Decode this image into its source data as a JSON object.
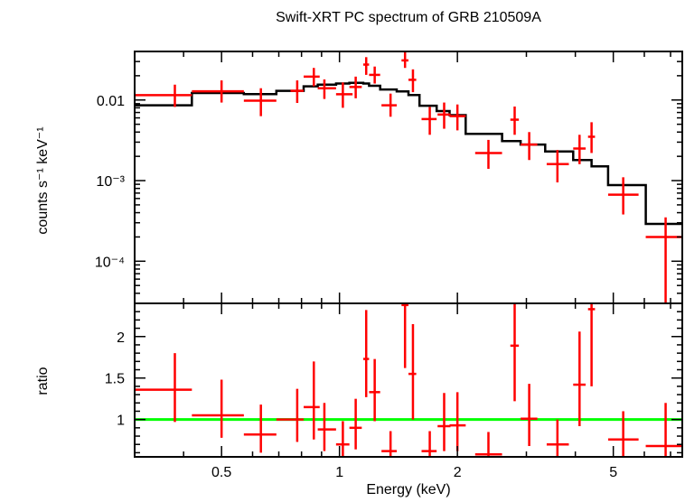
{
  "chart_data": [
    {
      "panel": "spectrum",
      "type": "scatter",
      "title": "Swift-XRT PC spectrum of GRB 210509A",
      "xlabel": "",
      "ylabel": "counts s⁻¹ keV⁻¹",
      "xscale": "log",
      "yscale": "log",
      "xlim": [
        0.3,
        7.5
      ],
      "ylim": [
        3e-05,
        0.04
      ],
      "y_tick_labels": [
        "0.01",
        "10⁻³",
        "10⁻⁴"
      ],
      "y_ticks": [
        0.01,
        0.001,
        0.0001
      ],
      "grid": false,
      "colors": {
        "data": "#ff0000",
        "model": "#000000"
      },
      "data_points": [
        {
          "x": 0.38,
          "xlo": 0.3,
          "xhi": 0.42,
          "y": 0.0115,
          "ylo": 0.0082,
          "yhi": 0.0155
        },
        {
          "x": 0.5,
          "xlo": 0.42,
          "xhi": 0.57,
          "y": 0.0128,
          "ylo": 0.0093,
          "yhi": 0.0175
        },
        {
          "x": 0.63,
          "xlo": 0.57,
          "xhi": 0.69,
          "y": 0.0098,
          "ylo": 0.0063,
          "yhi": 0.014
        },
        {
          "x": 0.78,
          "xlo": 0.75,
          "xhi": 0.81,
          "y": 0.013,
          "ylo": 0.0092,
          "yhi": 0.0175
        },
        {
          "x": 0.86,
          "xlo": 0.81,
          "xhi": 0.89,
          "y": 0.0195,
          "ylo": 0.0148,
          "yhi": 0.025
        },
        {
          "x": 0.915,
          "xlo": 0.88,
          "xhi": 0.98,
          "y": 0.014,
          "ylo": 0.0103,
          "yhi": 0.018
        },
        {
          "x": 1.02,
          "xlo": 0.98,
          "xhi": 1.08,
          "y": 0.0118,
          "ylo": 0.008,
          "yhi": 0.0165
        },
        {
          "x": 1.1,
          "xlo": 1.06,
          "xhi": 1.14,
          "y": 0.0145,
          "ylo": 0.0105,
          "yhi": 0.0195
        },
        {
          "x": 1.17,
          "xlo": 1.15,
          "xhi": 1.19,
          "y": 0.0275,
          "ylo": 0.0205,
          "yhi": 0.034
        },
        {
          "x": 1.23,
          "xlo": 1.19,
          "xhi": 1.27,
          "y": 0.0205,
          "ylo": 0.016,
          "yhi": 0.026
        },
        {
          "x": 1.35,
          "xlo": 1.28,
          "xhi": 1.4,
          "y": 0.0086,
          "ylo": 0.0062,
          "yhi": 0.012
        },
        {
          "x": 1.47,
          "xlo": 1.44,
          "xhi": 1.5,
          "y": 0.031,
          "ylo": 0.025,
          "yhi": 0.039
        },
        {
          "x": 1.54,
          "xlo": 1.5,
          "xhi": 1.57,
          "y": 0.0178,
          "ylo": 0.0125,
          "yhi": 0.024
        },
        {
          "x": 1.7,
          "xlo": 1.62,
          "xhi": 1.77,
          "y": 0.0058,
          "ylo": 0.0037,
          "yhi": 0.0082
        },
        {
          "x": 1.85,
          "xlo": 1.78,
          "xhi": 1.92,
          "y": 0.0066,
          "ylo": 0.0044,
          "yhi": 0.0093
        },
        {
          "x": 2.0,
          "xlo": 1.91,
          "xhi": 2.1,
          "y": 0.0063,
          "ylo": 0.0042,
          "yhi": 0.0088
        },
        {
          "x": 2.4,
          "xlo": 2.22,
          "xhi": 2.6,
          "y": 0.0022,
          "ylo": 0.0014,
          "yhi": 0.0032
        },
        {
          "x": 2.8,
          "xlo": 2.73,
          "xhi": 2.87,
          "y": 0.0057,
          "ylo": 0.0037,
          "yhi": 0.0083
        },
        {
          "x": 3.05,
          "xlo": 2.9,
          "xhi": 3.2,
          "y": 0.0028,
          "ylo": 0.0018,
          "yhi": 0.004
        },
        {
          "x": 3.6,
          "xlo": 3.38,
          "xhi": 3.85,
          "y": 0.0016,
          "ylo": 0.00095,
          "yhi": 0.0024
        },
        {
          "x": 4.1,
          "xlo": 3.95,
          "xhi": 4.25,
          "y": 0.0025,
          "ylo": 0.0016,
          "yhi": 0.0037
        },
        {
          "x": 4.4,
          "xlo": 4.31,
          "xhi": 4.49,
          "y": 0.0035,
          "ylo": 0.0022,
          "yhi": 0.0053
        },
        {
          "x": 5.3,
          "xlo": 4.85,
          "xhi": 5.8,
          "y": 0.00067,
          "ylo": 0.00038,
          "yhi": 0.0011
        },
        {
          "x": 6.8,
          "xlo": 6.05,
          "xhi": 7.5,
          "y": 0.0002,
          "ylo": 3e-05,
          "yhi": 0.00035
        }
      ],
      "model_steps": [
        {
          "x0": 0.3,
          "x1": 0.42,
          "y": 0.0086
        },
        {
          "x0": 0.42,
          "x1": 0.57,
          "y": 0.0122
        },
        {
          "x0": 0.57,
          "x1": 0.69,
          "y": 0.0118
        },
        {
          "x0": 0.69,
          "x1": 0.81,
          "y": 0.013
        },
        {
          "x0": 0.81,
          "x1": 0.88,
          "y": 0.0148
        },
        {
          "x0": 0.88,
          "x1": 0.98,
          "y": 0.0155
        },
        {
          "x0": 0.98,
          "x1": 1.06,
          "y": 0.016
        },
        {
          "x0": 1.06,
          "x1": 1.15,
          "y": 0.0163
        },
        {
          "x0": 1.15,
          "x1": 1.19,
          "y": 0.016
        },
        {
          "x0": 1.19,
          "x1": 1.27,
          "y": 0.015
        },
        {
          "x0": 1.27,
          "x1": 1.4,
          "y": 0.0135
        },
        {
          "x0": 1.4,
          "x1": 1.5,
          "y": 0.0128
        },
        {
          "x0": 1.5,
          "x1": 1.6,
          "y": 0.0115
        },
        {
          "x0": 1.6,
          "x1": 1.77,
          "y": 0.0085
        },
        {
          "x0": 1.77,
          "x1": 1.91,
          "y": 0.0073
        },
        {
          "x0": 1.91,
          "x1": 2.1,
          "y": 0.0065
        },
        {
          "x0": 2.1,
          "x1": 2.6,
          "y": 0.0038
        },
        {
          "x0": 2.6,
          "x1": 2.9,
          "y": 0.0031
        },
        {
          "x0": 2.9,
          "x1": 3.35,
          "y": 0.0028
        },
        {
          "x0": 3.35,
          "x1": 3.95,
          "y": 0.0023
        },
        {
          "x0": 3.95,
          "x1": 4.4,
          "y": 0.0018
        },
        {
          "x0": 4.4,
          "x1": 4.85,
          "y": 0.0015
        },
        {
          "x0": 4.85,
          "x1": 6.05,
          "y": 0.00088
        },
        {
          "x0": 6.05,
          "x1": 7.5,
          "y": 0.00029
        }
      ]
    },
    {
      "panel": "ratio",
      "type": "scatter",
      "xlabel": "Energy (keV)",
      "ylabel": "ratio",
      "xscale": "log",
      "yscale": "linear",
      "xlim": [
        0.3,
        7.5
      ],
      "ylim": [
        0.55,
        2.4
      ],
      "x_ticks": [
        0.5,
        1,
        2,
        5
      ],
      "x_tick_labels": [
        "0.5",
        "1",
        "2",
        "5"
      ],
      "y_ticks": [
        1,
        1.5,
        2
      ],
      "y_tick_labels": [
        "1",
        "1.5",
        "2"
      ],
      "reference_line": 1.0,
      "colors": {
        "data": "#ff0000",
        "reference": "#00ff00"
      },
      "data_points": [
        {
          "x": 0.38,
          "xlo": 0.3,
          "xhi": 0.42,
          "y": 1.36,
          "ylo": 0.97,
          "yhi": 1.8
        },
        {
          "x": 0.5,
          "xlo": 0.42,
          "xhi": 0.57,
          "y": 1.05,
          "ylo": 0.78,
          "yhi": 1.48
        },
        {
          "x": 0.63,
          "xlo": 0.57,
          "xhi": 0.69,
          "y": 0.82,
          "ylo": 0.6,
          "yhi": 1.18
        },
        {
          "x": 0.78,
          "xlo": 0.69,
          "xhi": 0.81,
          "y": 1.0,
          "ylo": 0.73,
          "yhi": 1.37
        },
        {
          "x": 0.86,
          "xlo": 0.81,
          "xhi": 0.89,
          "y": 1.15,
          "ylo": 0.76,
          "yhi": 1.7
        },
        {
          "x": 0.915,
          "xlo": 0.88,
          "xhi": 0.98,
          "y": 0.88,
          "ylo": 0.62,
          "yhi": 1.2
        },
        {
          "x": 1.02,
          "xlo": 0.98,
          "xhi": 1.06,
          "y": 0.7,
          "ylo": 0.5,
          "yhi": 0.98
        },
        {
          "x": 1.1,
          "xlo": 1.06,
          "xhi": 1.14,
          "y": 0.9,
          "ylo": 0.64,
          "yhi": 1.25
        },
        {
          "x": 1.17,
          "xlo": 1.15,
          "xhi": 1.19,
          "y": 1.73,
          "ylo": 1.27,
          "yhi": 2.32
        },
        {
          "x": 1.23,
          "xlo": 1.19,
          "xhi": 1.27,
          "y": 1.33,
          "ylo": 0.98,
          "yhi": 1.73
        },
        {
          "x": 1.35,
          "xlo": 1.28,
          "xhi": 1.4,
          "y": 0.62,
          "ylo": 0.45,
          "yhi": 0.86
        },
        {
          "x": 1.47,
          "xlo": 1.44,
          "xhi": 1.5,
          "y": 2.38,
          "ylo": 1.62,
          "yhi": 2.4
        },
        {
          "x": 1.54,
          "xlo": 1.5,
          "xhi": 1.57,
          "y": 1.55,
          "ylo": 1.0,
          "yhi": 2.15
        },
        {
          "x": 1.7,
          "xlo": 1.62,
          "xhi": 1.77,
          "y": 0.62,
          "ylo": 0.45,
          "yhi": 0.86
        },
        {
          "x": 1.85,
          "xlo": 1.78,
          "xhi": 1.92,
          "y": 0.92,
          "ylo": 0.62,
          "yhi": 1.32
        },
        {
          "x": 2.0,
          "xlo": 1.91,
          "xhi": 2.1,
          "y": 0.93,
          "ylo": 0.62,
          "yhi": 1.33
        },
        {
          "x": 2.4,
          "xlo": 2.22,
          "xhi": 2.6,
          "y": 0.58,
          "ylo": 0.38,
          "yhi": 0.85
        },
        {
          "x": 2.8,
          "xlo": 2.73,
          "xhi": 2.87,
          "y": 1.89,
          "ylo": 1.22,
          "yhi": 2.6
        },
        {
          "x": 3.05,
          "xlo": 2.9,
          "xhi": 3.2,
          "y": 1.01,
          "ylo": 0.68,
          "yhi": 1.43
        },
        {
          "x": 3.6,
          "xlo": 3.38,
          "xhi": 3.85,
          "y": 0.7,
          "ylo": 0.45,
          "yhi": 1.0
        },
        {
          "x": 4.1,
          "xlo": 3.95,
          "xhi": 4.25,
          "y": 1.42,
          "ylo": 0.92,
          "yhi": 2.06
        },
        {
          "x": 4.4,
          "xlo": 4.31,
          "xhi": 4.49,
          "y": 2.33,
          "ylo": 1.4,
          "yhi": 2.4
        },
        {
          "x": 5.3,
          "xlo": 4.85,
          "xhi": 5.8,
          "y": 0.76,
          "ylo": 0.44,
          "yhi": 1.1
        },
        {
          "x": 6.8,
          "xlo": 6.05,
          "xhi": 7.5,
          "y": 0.68,
          "ylo": 0.3,
          "yhi": 1.2
        }
      ]
    }
  ]
}
